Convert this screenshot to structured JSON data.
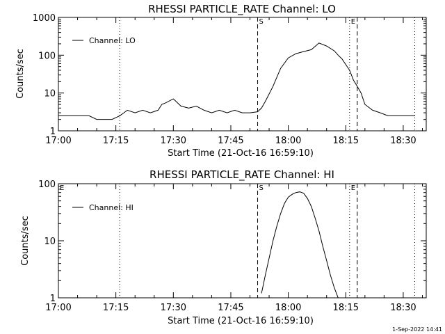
{
  "footer": {
    "date_stamp": "1-Sep-2022 14:41"
  },
  "chart_data": [
    {
      "type": "line",
      "title": "RHESSI PARTICLE_RATE Channel: LO",
      "xlabel": "Start Time (21-Oct-16 16:59:10)",
      "ylabel": "Counts/sec",
      "y_scale": "log",
      "xlim": [
        "17:00",
        "18:36"
      ],
      "ylim": [
        1,
        1000
      ],
      "x_ticks": [
        "17:00",
        "17:15",
        "17:30",
        "17:45",
        "18:00",
        "18:15",
        "18:30"
      ],
      "y_ticks": [
        "1",
        "10",
        "100",
        "1000"
      ],
      "legend": {
        "placement": "top-left",
        "entries": [
          "Channel: LO"
        ]
      },
      "markers": [
        {
          "label": "",
          "time": "17:16",
          "style": "dotted"
        },
        {
          "label": "S",
          "time": "17:52",
          "style": "dashed"
        },
        {
          "label": "E",
          "time": "18:16",
          "style": "dotted"
        },
        {
          "label": "",
          "time": "18:18",
          "style": "dashed"
        },
        {
          "label": "",
          "time": "18:33",
          "style": "dotted"
        }
      ],
      "series": [
        {
          "name": "Channel: LO",
          "x": [
            "17:00",
            "17:02",
            "17:04",
            "17:06",
            "17:08",
            "17:10",
            "17:12",
            "17:14",
            "17:16",
            "17:18",
            "17:20",
            "17:22",
            "17:24",
            "17:26",
            "17:27",
            "17:28",
            "17:30",
            "17:32",
            "17:34",
            "17:36",
            "17:38",
            "17:40",
            "17:42",
            "17:44",
            "17:46",
            "17:48",
            "17:50",
            "17:52",
            "17:53",
            "17:54",
            "17:56",
            "17:58",
            "18:00",
            "18:02",
            "18:04",
            "18:06",
            "18:07",
            "18:08",
            "18:10",
            "18:12",
            "18:13",
            "18:14",
            "18:16",
            "18:17",
            "18:18",
            "18:19",
            "18:20",
            "18:22",
            "18:24",
            "18:26",
            "18:28",
            "18:30",
            "18:32",
            "18:33"
          ],
          "y": [
            2.5,
            2.5,
            2.5,
            2.5,
            2.5,
            2.0,
            2.0,
            2.0,
            2.5,
            3.5,
            3.0,
            3.5,
            3.0,
            3.5,
            5.0,
            5.5,
            7.0,
            4.5,
            4.0,
            4.5,
            3.5,
            3.0,
            3.5,
            3.0,
            3.5,
            3.0,
            3.0,
            3.2,
            4.0,
            6.0,
            15,
            45,
            85,
            110,
            125,
            140,
            170,
            210,
            175,
            130,
            100,
            80,
            40,
            22,
            15,
            10,
            5,
            3.5,
            3.0,
            2.5,
            2.5,
            2.5,
            2.5,
            2.5
          ]
        }
      ]
    },
    {
      "type": "line",
      "title": "RHESSI PARTICLE_RATE Channel: HI",
      "xlabel": "Start Time (21-Oct-16 16:59:10)",
      "ylabel": "Counts/sec",
      "y_scale": "log",
      "xlim": [
        "17:00",
        "18:36"
      ],
      "ylim": [
        1,
        100
      ],
      "x_ticks": [
        "17:00",
        "17:15",
        "17:30",
        "17:45",
        "18:00",
        "18:15",
        "18:30"
      ],
      "y_ticks": [
        "1",
        "10",
        "100"
      ],
      "legend": {
        "placement": "top-left",
        "entries": [
          "Channel: HI"
        ]
      },
      "markers": [
        {
          "label": "E",
          "time": "17:00",
          "style": "dotted"
        },
        {
          "label": "",
          "time": "17:16",
          "style": "dotted"
        },
        {
          "label": "S",
          "time": "17:52",
          "style": "dashed"
        },
        {
          "label": "E",
          "time": "18:16",
          "style": "dotted"
        },
        {
          "label": "",
          "time": "18:18",
          "style": "dashed"
        },
        {
          "label": "",
          "time": "18:33",
          "style": "dotted"
        }
      ],
      "series": [
        {
          "name": "Channel: HI",
          "x": [
            "17:53",
            "17:54",
            "17:55",
            "17:56",
            "17:57",
            "17:58",
            "17:59",
            "18:00",
            "18:01",
            "18:02",
            "18:03",
            "18:04",
            "18:05",
            "18:06",
            "18:07",
            "18:08",
            "18:09",
            "18:10",
            "18:11",
            "18:12",
            "18:13",
            "18:13.5"
          ],
          "y": [
            1.2,
            2.5,
            5.0,
            10,
            18,
            30,
            45,
            58,
            65,
            70,
            72,
            68,
            55,
            40,
            25,
            15,
            8,
            4.5,
            2.5,
            1.5,
            1.0,
            0.8
          ]
        }
      ]
    }
  ]
}
